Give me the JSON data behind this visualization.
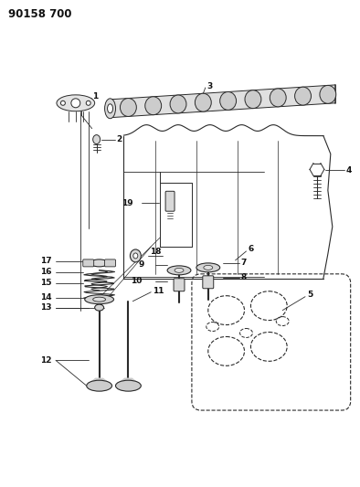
{
  "title": "90158 700",
  "bg": "#ffffff",
  "lc": "#2a2a2a",
  "fw": 3.94,
  "fh": 5.33,
  "dpi": 100
}
